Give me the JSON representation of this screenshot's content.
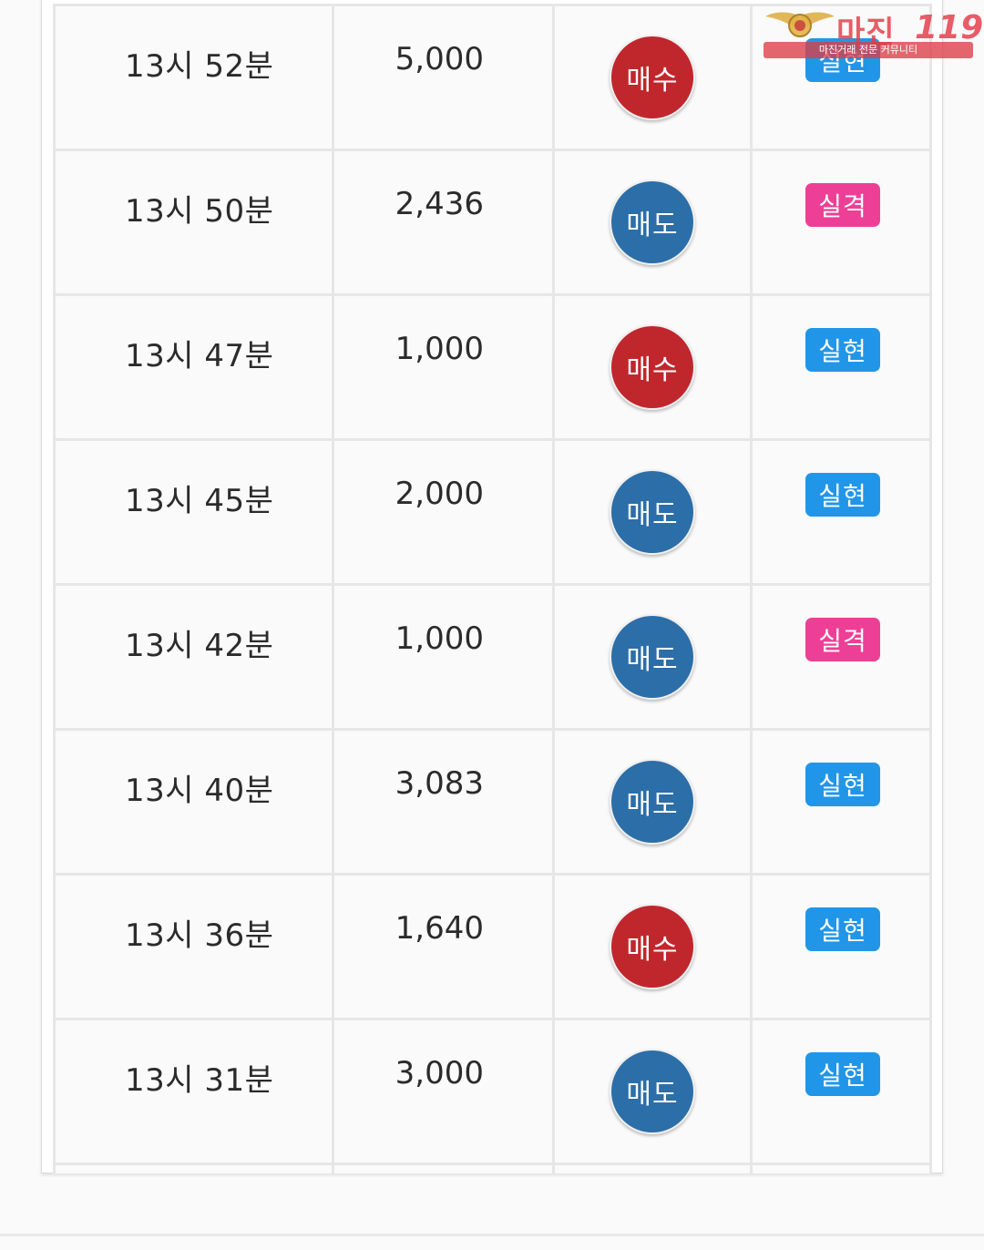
{
  "watermark": {
    "brand_text": "마진",
    "brand_number": "119",
    "tagline": "마진거래 전문 커뮤니티"
  },
  "colors": {
    "buy": "#c0272d",
    "sell": "#2c6ea8",
    "win": "#2196e8",
    "lose": "#ee3f96"
  },
  "rows": [
    {
      "time": "13시 52분",
      "qty": "5,000",
      "side": "매수",
      "side_type": "buy",
      "result": "실현",
      "result_type": "win"
    },
    {
      "time": "13시 50분",
      "qty": "2,436",
      "side": "매도",
      "side_type": "sell",
      "result": "실격",
      "result_type": "lose"
    },
    {
      "time": "13시 47분",
      "qty": "1,000",
      "side": "매수",
      "side_type": "buy",
      "result": "실현",
      "result_type": "win"
    },
    {
      "time": "13시 45분",
      "qty": "2,000",
      "side": "매도",
      "side_type": "sell",
      "result": "실현",
      "result_type": "win"
    },
    {
      "time": "13시 42분",
      "qty": "1,000",
      "side": "매도",
      "side_type": "sell",
      "result": "실격",
      "result_type": "lose"
    },
    {
      "time": "13시 40분",
      "qty": "3,083",
      "side": "매도",
      "side_type": "sell",
      "result": "실현",
      "result_type": "win"
    },
    {
      "time": "13시 36분",
      "qty": "1,640",
      "side": "매수",
      "side_type": "buy",
      "result": "실현",
      "result_type": "win"
    },
    {
      "time": "13시 31분",
      "qty": "3,000",
      "side": "매도",
      "side_type": "sell",
      "result": "실현",
      "result_type": "win"
    }
  ]
}
